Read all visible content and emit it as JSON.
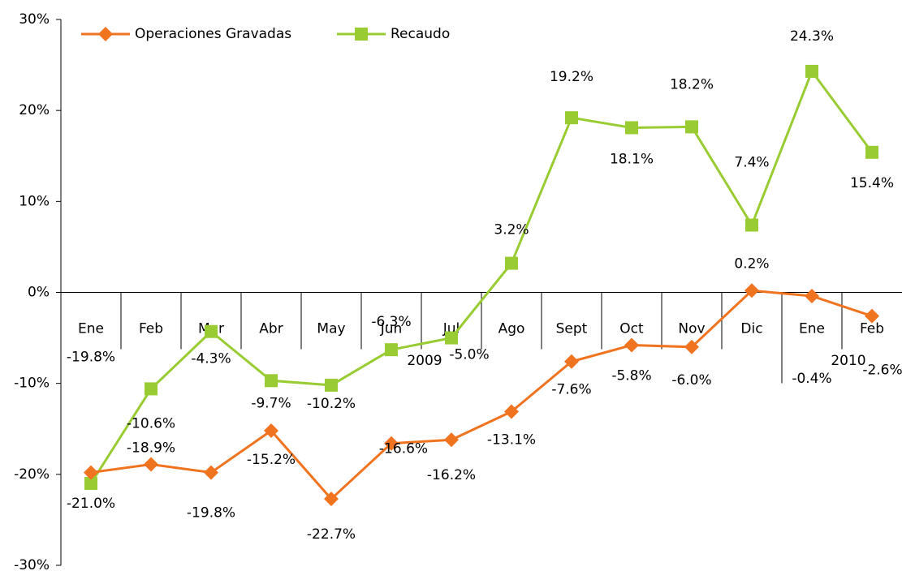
{
  "chart_data": {
    "type": "line",
    "categories": [
      "Ene",
      "Feb",
      "Mar",
      "Abr",
      "May",
      "Jun",
      "Jul",
      "Ago",
      "Sept",
      "Oct",
      "Nov",
      "Dic",
      "Ene",
      "Feb"
    ],
    "groups": [
      "2009",
      "2010"
    ],
    "series": [
      {
        "name": "Operaciones Gravadas",
        "color": "#f07320",
        "marker": "diamond",
        "values": [
          -19.8,
          -18.9,
          -19.8,
          -15.2,
          -22.7,
          -16.6,
          -16.2,
          -13.1,
          -7.6,
          -5.8,
          -6.0,
          0.2,
          -0.4,
          -2.6
        ],
        "value_labels": [
          "-19.8%",
          "-18.9%",
          "-19.8%",
          "-15.2%",
          "-22.7%",
          "-16.6%",
          "-16.2%",
          "-13.1%",
          "-7.6%",
          "-5.8%",
          "-6.0%",
          "0.2%",
          "-0.4%",
          "-2.6%"
        ]
      },
      {
        "name": "Recaudo",
        "color": "#99cc33",
        "marker": "square",
        "values": [
          -21.0,
          -10.6,
          -4.3,
          -9.7,
          -10.2,
          -6.3,
          -5.0,
          3.2,
          19.2,
          18.1,
          18.2,
          7.4,
          24.3,
          15.4
        ],
        "value_labels": [
          "-21.0%",
          "-10.6%",
          "-4.3%",
          "-9.7%",
          "-10.2%",
          "-6.3%",
          "-5.0%",
          "3.2%",
          "19.2%",
          "18.1%",
          "18.2%",
          "7.4%",
          "24.3%",
          "15.4%"
        ]
      }
    ],
    "ylim": [
      -30,
      30
    ],
    "yticks": [
      {
        "value": -30,
        "label": "-30%"
      },
      {
        "value": -20,
        "label": "-20%"
      },
      {
        "value": -10,
        "label": "-10%"
      },
      {
        "value": 0,
        "label": "0%"
      },
      {
        "value": 10,
        "label": "10%"
      },
      {
        "value": 20,
        "label": "20%"
      },
      {
        "value": 30,
        "label": "30%"
      }
    ],
    "legend": "top-left"
  }
}
